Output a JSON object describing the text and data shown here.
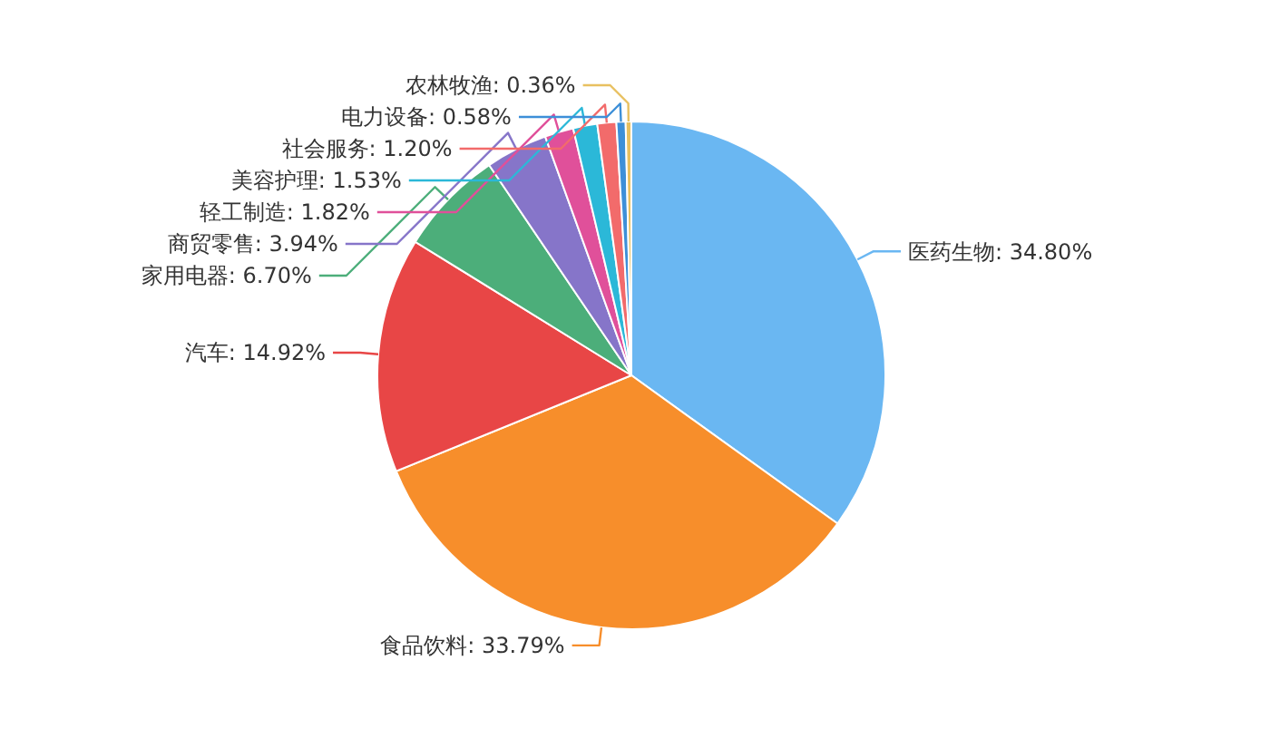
{
  "chart_data": {
    "type": "pie",
    "categories": [
      "医药生物",
      "食品饮料",
      "汽车",
      "家用电器",
      "商贸零售",
      "轻工制造",
      "美容护理",
      "社会服务",
      "电力设备",
      "农林牧渔"
    ],
    "values": [
      34.8,
      33.79,
      14.92,
      6.7,
      3.94,
      1.82,
      1.53,
      1.2,
      0.58,
      0.36
    ],
    "value_labels": [
      "34.80%",
      "33.79%",
      "14.92%",
      "6.70%",
      "3.94%",
      "1.82%",
      "1.53%",
      "1.20%",
      "0.58%",
      "0.36%"
    ],
    "colors": [
      "#6ab7f2",
      "#f78e2b",
      "#e84646",
      "#4cae7a",
      "#8675c9",
      "#e0509a",
      "#2bb8d8",
      "#f26b6b",
      "#3d8fd8",
      "#e8c060"
    ]
  }
}
